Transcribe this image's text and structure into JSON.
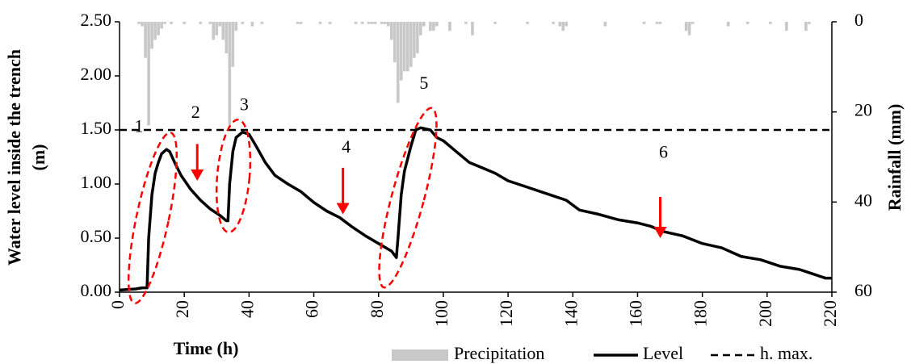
{
  "chart_data": {
    "type": "combo",
    "xlabel": "Time (h)",
    "ylabel": [
      "Water level inside the trench",
      "(m)"
    ],
    "y2label": "Rainfall (mm)",
    "xlim": [
      0,
      220
    ],
    "xticks": [
      0,
      20,
      40,
      60,
      80,
      100,
      120,
      140,
      160,
      180,
      200,
      220
    ],
    "ylim": [
      0,
      2.5
    ],
    "yticks": [
      {
        "value": 0,
        "label": "0.00"
      },
      {
        "value": 0.5,
        "label": "0.50"
      },
      {
        "value": 1,
        "label": "1.00"
      },
      {
        "value": 1.5,
        "label": "1.50"
      },
      {
        "value": 2,
        "label": "2.00"
      },
      {
        "value": 2.5,
        "label": "2.50"
      }
    ],
    "y2lim": [
      0,
      60
    ],
    "y2ticks": [
      0,
      20,
      40,
      60
    ],
    "y2_inverted": true,
    "legend": "bottom",
    "annotations": [
      "1",
      "2",
      "3",
      "4",
      "5",
      "6"
    ],
    "annotation_color": "#ff0000",
    "series": [
      {
        "name": "Precipitation",
        "type": "bar",
        "axis": "y2",
        "color": "#c8c8c8",
        "x": [
          6,
          7,
          8,
          9,
          10,
          11,
          12,
          13,
          14,
          16,
          20,
          25,
          28,
          29,
          30,
          31,
          32,
          33,
          34,
          35,
          36,
          38,
          41,
          44,
          55,
          56,
          62,
          65,
          73,
          75,
          77,
          78,
          79,
          81,
          82,
          83,
          84,
          85,
          86,
          87,
          88,
          89,
          90,
          91,
          92,
          93,
          94,
          96,
          97,
          98,
          102,
          107,
          109,
          116,
          126,
          134,
          136,
          137,
          138,
          150,
          162,
          166,
          167,
          175,
          176,
          177,
          188,
          194,
          201,
          206,
          212,
          213
        ],
        "values": [
          0.5,
          1,
          8,
          23,
          6,
          4,
          3,
          1.5,
          0.5,
          0.5,
          0.5,
          0.5,
          0.5,
          4,
          3,
          1,
          4,
          7,
          23,
          10,
          2,
          0.5,
          1,
          0.5,
          0.5,
          0.5,
          0.5,
          0.5,
          0.5,
          0.5,
          0.5,
          0.5,
          0.5,
          0.5,
          0.5,
          1,
          4,
          9,
          18,
          13,
          11,
          11,
          10,
          8,
          7,
          3,
          1,
          2,
          2,
          1,
          2,
          0.5,
          3,
          0.5,
          0.5,
          0.5,
          1,
          2,
          1,
          1,
          0.5,
          0.5,
          0.5,
          2,
          3,
          0.5,
          1,
          0.5,
          0.5,
          2,
          2,
          0.5
        ]
      },
      {
        "name": "Level",
        "type": "line",
        "color": "#000000",
        "x": [
          0,
          5,
          7,
          8.5,
          9,
          10,
          11,
          12,
          13,
          14.5,
          15.5,
          17,
          19,
          22,
          25,
          28,
          31,
          33,
          33.5,
          34,
          35,
          36,
          38,
          40,
          42,
          45,
          48,
          52,
          56,
          60,
          64,
          68,
          72,
          76,
          80,
          84,
          85.5,
          86,
          87,
          88,
          90,
          91.5,
          93,
          96,
          98,
          100,
          104,
          108,
          112,
          116,
          120,
          126,
          132,
          138,
          142,
          148,
          154,
          160,
          164,
          168,
          174,
          180,
          186,
          192,
          198,
          204,
          210,
          214,
          218,
          220
        ],
        "values": [
          0.02,
          0.03,
          0.04,
          0.04,
          0.5,
          0.9,
          1.1,
          1.2,
          1.28,
          1.32,
          1.3,
          1.2,
          1.08,
          0.95,
          0.85,
          0.77,
          0.71,
          0.66,
          0.66,
          1.0,
          1.3,
          1.43,
          1.48,
          1.46,
          1.36,
          1.2,
          1.08,
          1.0,
          0.93,
          0.83,
          0.75,
          0.69,
          0.6,
          0.52,
          0.45,
          0.38,
          0.32,
          0.5,
          0.9,
          1.12,
          1.35,
          1.5,
          1.52,
          1.5,
          1.43,
          1.4,
          1.3,
          1.2,
          1.15,
          1.1,
          1.03,
          0.97,
          0.91,
          0.85,
          0.76,
          0.72,
          0.67,
          0.64,
          0.61,
          0.56,
          0.52,
          0.45,
          0.41,
          0.33,
          0.3,
          0.24,
          0.21,
          0.17,
          0.13,
          0.13
        ]
      },
      {
        "name": "h. max.",
        "type": "dashed",
        "color": "#000000",
        "x": [
          0,
          220
        ],
        "values": [
          1.5,
          1.5
        ]
      }
    ]
  }
}
